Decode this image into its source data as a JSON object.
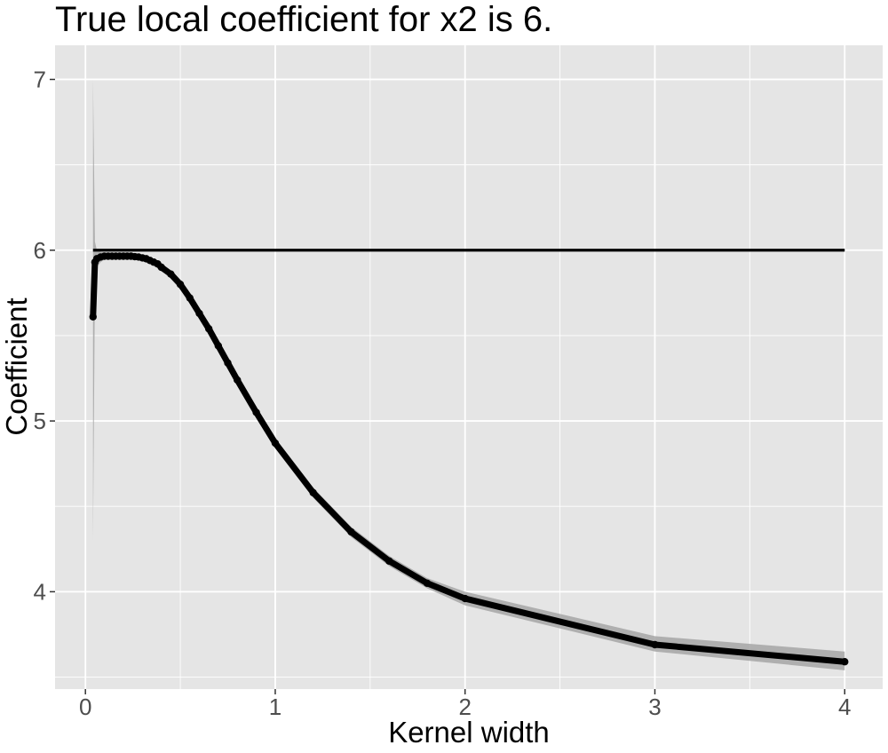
{
  "chart_data": {
    "type": "line",
    "title": "True local coefficient for x2 is 6.",
    "xlabel": "Kernel width",
    "ylabel": "Coefficient",
    "xlim": [
      -0.16,
      4.2
    ],
    "ylim": [
      3.43,
      7.2
    ],
    "x_ticks": [
      0,
      1,
      2,
      3,
      4
    ],
    "x_tick_labels": [
      "0",
      "1",
      "2",
      "3",
      "4"
    ],
    "y_ticks": [
      4,
      5,
      6,
      7
    ],
    "y_tick_labels": [
      "4",
      "5",
      "6",
      "7"
    ],
    "grid": true,
    "legend": "none",
    "colors": {
      "panel_background": "#e5e5e5",
      "grid_line": "#ffffff",
      "series_line": "#000000",
      "confidence_band": "#a6a6a6",
      "tick_label": "#4d4d4d"
    },
    "reference_line": {
      "y": 6,
      "x_start": 0.04,
      "x_end": 4
    },
    "series": [
      {
        "x": [
          0.04,
          0.05,
          0.06,
          0.08,
          0.1,
          0.12,
          0.14,
          0.16,
          0.18,
          0.2,
          0.22,
          0.24,
          0.26,
          0.28,
          0.3,
          0.32,
          0.34,
          0.36,
          0.38,
          0.4,
          0.45,
          0.5,
          0.55,
          0.6,
          0.65,
          0.7,
          0.75,
          0.8,
          0.9,
          1.0,
          1.2,
          1.4,
          1.6,
          1.8,
          2.0,
          3.0,
          4.0
        ],
        "y": [
          5.61,
          5.93,
          5.95,
          5.96,
          5.965,
          5.965,
          5.965,
          5.965,
          5.965,
          5.965,
          5.965,
          5.965,
          5.962,
          5.96,
          5.955,
          5.95,
          5.94,
          5.93,
          5.92,
          5.9,
          5.86,
          5.8,
          5.72,
          5.63,
          5.54,
          5.44,
          5.34,
          5.24,
          5.05,
          4.87,
          4.58,
          4.35,
          4.18,
          4.05,
          3.96,
          3.69,
          3.59
        ],
        "lower": [
          4.3,
          5.8,
          5.9,
          5.93,
          5.945,
          5.95,
          5.95,
          5.95,
          5.95,
          5.95,
          5.95,
          5.95,
          5.947,
          5.944,
          5.938,
          5.932,
          5.92,
          5.91,
          5.9,
          5.88,
          5.84,
          5.78,
          5.7,
          5.6,
          5.51,
          5.41,
          5.31,
          5.21,
          5.02,
          4.84,
          4.55,
          4.32,
          4.15,
          4.02,
          3.92,
          3.65,
          3.54
        ],
        "upper": [
          7.0,
          6.05,
          6.0,
          5.99,
          5.985,
          5.98,
          5.98,
          5.98,
          5.98,
          5.98,
          5.98,
          5.98,
          5.977,
          5.976,
          5.972,
          5.968,
          5.96,
          5.95,
          5.94,
          5.92,
          5.88,
          5.82,
          5.74,
          5.66,
          5.57,
          5.47,
          5.37,
          5.27,
          5.08,
          4.9,
          4.61,
          4.38,
          4.21,
          4.08,
          4.0,
          3.74,
          3.65
        ]
      }
    ]
  }
}
